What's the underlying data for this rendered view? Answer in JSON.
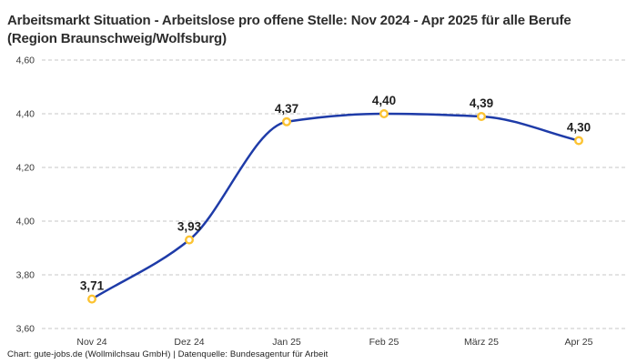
{
  "header": {
    "title": "Arbeitsmarkt Situation - Arbeitslose pro offene Stelle: Nov 2024 - Apr 2025 für alle Berufe (Region Braunschweig/Wolfsburg)"
  },
  "footer": {
    "credit": "Chart: gute-jobs.de (Wollmilchsau GmbH) | Datenquelle: Bundesagentur für Arbeit"
  },
  "chart_data": {
    "type": "line",
    "title": "Arbeitsmarkt Situation - Arbeitslose pro offene Stelle: Nov 2024 - Apr 2025 für alle Berufe (Region Braunschweig/Wolfsburg)",
    "categories": [
      "Nov 24",
      "Dez 24",
      "Jan 25",
      "Feb 25",
      "März 25",
      "Apr 25"
    ],
    "values": [
      3.71,
      3.93,
      4.37,
      4.4,
      4.39,
      4.3
    ],
    "point_labels": [
      "3,71",
      "3,93",
      "4,37",
      "4,40",
      "4,39",
      "4,30"
    ],
    "y_ticks": [
      3.6,
      3.8,
      4.0,
      4.2,
      4.4,
      4.6
    ],
    "y_tick_labels": [
      "3,60",
      "3,80",
      "4,00",
      "4,20",
      "4,40",
      "4,60"
    ],
    "ylim": [
      3.6,
      4.6
    ],
    "xlabel": "",
    "ylabel": "",
    "legend": "none",
    "grid": "horizontal-dashed",
    "curve": "monotone-spline",
    "colors": {
      "line": "#1e3ba8",
      "marker_ring": "#fcc332",
      "marker_fill": "#ffffff",
      "point_label": "#1f1f1f",
      "tick_label": "#383838",
      "gridline": "#c7c7c7"
    }
  }
}
